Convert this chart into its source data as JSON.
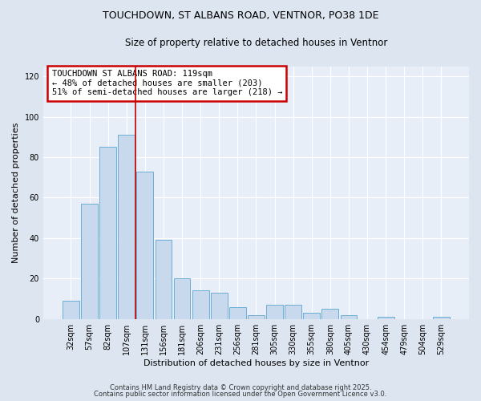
{
  "title_line1": "TOUCHDOWN, ST ALBANS ROAD, VENTNOR, PO38 1DE",
  "title_line2": "Size of property relative to detached houses in Ventnor",
  "xlabel": "Distribution of detached houses by size in Ventnor",
  "ylabel": "Number of detached properties",
  "categories": [
    "32sqm",
    "57sqm",
    "82sqm",
    "107sqm",
    "131sqm",
    "156sqm",
    "181sqm",
    "206sqm",
    "231sqm",
    "256sqm",
    "281sqm",
    "305sqm",
    "330sqm",
    "355sqm",
    "380sqm",
    "405sqm",
    "430sqm",
    "454sqm",
    "479sqm",
    "504sqm",
    "529sqm"
  ],
  "values": [
    9,
    57,
    85,
    91,
    73,
    39,
    20,
    14,
    13,
    6,
    2,
    7,
    7,
    3,
    5,
    2,
    0,
    1,
    0,
    0,
    1
  ],
  "bar_color": "#c8d9ee",
  "bar_edge_color": "#6baed6",
  "vline_x": 3.5,
  "vline_color": "#c00000",
  "annotation_text": "TOUCHDOWN ST ALBANS ROAD: 119sqm\n← 48% of detached houses are smaller (203)\n51% of semi-detached houses are larger (218) →",
  "annotation_box_color": "#ffffff",
  "annotation_box_edge": "#cc0000",
  "ylim": [
    0,
    125
  ],
  "yticks": [
    0,
    20,
    40,
    60,
    80,
    100,
    120
  ],
  "footer1": "Contains HM Land Registry data © Crown copyright and database right 2025.",
  "footer2": "Contains public sector information licensed under the Open Government Licence v3.0.",
  "bg_color": "#dde5f0",
  "plot_bg_color": "#e8eef8",
  "title1_fontsize": 9,
  "title2_fontsize": 8.5,
  "xlabel_fontsize": 8,
  "ylabel_fontsize": 8,
  "tick_fontsize": 7,
  "footer_fontsize": 6
}
